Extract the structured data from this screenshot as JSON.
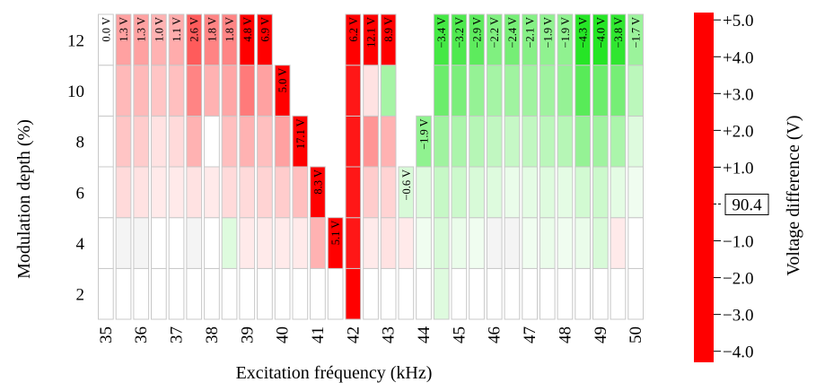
{
  "chart_data": {
    "type": "heatmap",
    "xlabel": "Excitation fréquency (kHz)",
    "ylabel": "Modulation depth (%)",
    "x_ticks": [
      "35",
      "36",
      "37",
      "38",
      "39",
      "40",
      "41",
      "42",
      "43",
      "44",
      "45",
      "46",
      "47",
      "48",
      "49",
      "50"
    ],
    "y_ticks": [
      "2",
      "4",
      "6",
      "8",
      "10",
      "12"
    ],
    "x_range": [
      35,
      50
    ],
    "y_range": [
      1,
      13
    ],
    "x_step": 0.5,
    "y_bands": [
      [
        1,
        3
      ],
      [
        3,
        5
      ],
      [
        5,
        7
      ],
      [
        7,
        9
      ],
      [
        9,
        11
      ],
      [
        11,
        13
      ]
    ],
    "threshold_labels": [
      {
        "x": 35.0,
        "label": "0.0 V"
      },
      {
        "x": 35.5,
        "label": "1.3 V"
      },
      {
        "x": 36.0,
        "label": "1.3 V"
      },
      {
        "x": 36.5,
        "label": "1.0 V"
      },
      {
        "x": 37.0,
        "label": "1.1 V"
      },
      {
        "x": 37.5,
        "label": "2.6 V"
      },
      {
        "x": 38.0,
        "label": "1.8 V"
      },
      {
        "x": 38.5,
        "label": "1.8 V"
      },
      {
        "x": 39.0,
        "label": "4.8 V"
      },
      {
        "x": 39.5,
        "label": "6.9 V"
      },
      {
        "x": 40.0,
        "label": "5.0 V"
      },
      {
        "x": 40.5,
        "label": "17.1 V"
      },
      {
        "x": 41.0,
        "label": "8.3 V"
      },
      {
        "x": 41.5,
        "label": "5.1 V"
      },
      {
        "x": 42.0,
        "label": "6.2 V"
      },
      {
        "x": 42.5,
        "label": "12.1 V"
      },
      {
        "x": 43.0,
        "label": "8.9 V"
      },
      {
        "x": 43.5,
        "label": "−0.6 V"
      },
      {
        "x": 44.0,
        "label": "−1.9 V"
      },
      {
        "x": 44.5,
        "label": "−3.4 V"
      },
      {
        "x": 45.0,
        "label": "−3.2 V"
      },
      {
        "x": 45.5,
        "label": "−2.9 V"
      },
      {
        "x": 46.0,
        "label": "−2.2 V"
      },
      {
        "x": 46.5,
        "label": "−2.4 V"
      },
      {
        "x": 47.0,
        "label": "−2.1 V"
      },
      {
        "x": 47.5,
        "label": "−1.9 V"
      },
      {
        "x": 48.0,
        "label": "−1.9 V"
      },
      {
        "x": 48.5,
        "label": "−4.3 V"
      },
      {
        "x": 49.0,
        "label": "−4.0 V"
      },
      {
        "x": 49.5,
        "label": "−3.8 V"
      },
      {
        "x": 50.0,
        "label": "−1.7 V"
      }
    ],
    "threshold_top": [
      13,
      13,
      13,
      13,
      13,
      13,
      13,
      13,
      13,
      13,
      11,
      9,
      7,
      5,
      13,
      13,
      13,
      7,
      9,
      13,
      13,
      13,
      13,
      13,
      13,
      13,
      13,
      13,
      13,
      13,
      13
    ],
    "cell_values": [
      [
        0.0,
        0.0,
        0.0,
        0.0,
        0.0,
        0.0
      ],
      [
        0.0,
        0.1,
        0.4,
        0.7,
        0.9,
        1.3
      ],
      [
        0.0,
        0.1,
        0.3,
        0.6,
        0.9,
        1.3
      ],
      [
        0.0,
        0.0,
        0.2,
        0.3,
        0.7,
        1.0
      ],
      [
        0.0,
        0.0,
        0.2,
        0.4,
        0.8,
        1.1
      ],
      [
        0.0,
        0.1,
        0.3,
        1.0,
        1.8,
        2.6
      ],
      [
        0.0,
        0.0,
        0.2,
        0.0,
        1.0,
        1.8
      ],
      [
        0.0,
        -0.5,
        0.4,
        0.8,
        1.2,
        1.8
      ],
      [
        0.0,
        0.2,
        0.4,
        1.0,
        2.0,
        4.8
      ],
      [
        0.0,
        0.2,
        0.5,
        0.8,
        1.3,
        6.9
      ],
      [
        0.0,
        0.2,
        0.6,
        1.3,
        5.0,
        0
      ],
      [
        0.0,
        0.2,
        0.8,
        17.1,
        0,
        0
      ],
      [
        0.0,
        1.0,
        8.3,
        0,
        0,
        0
      ],
      [
        0.0,
        5.1,
        0,
        0,
        0,
        0
      ],
      [
        6.2,
        4.0,
        4.0,
        4.0,
        4.0,
        6.2
      ],
      [
        0.0,
        0.2,
        0.6,
        1.5,
        0.3,
        12.1
      ],
      [
        0.0,
        0.3,
        0.5,
        1.0,
        -1.5,
        8.9
      ],
      [
        0.0,
        0.2,
        -0.6,
        0,
        0,
        0
      ],
      [
        0.0,
        -0.2,
        -0.5,
        -1.9,
        0,
        0
      ],
      [
        -0.5,
        -0.6,
        -0.9,
        -1.6,
        -2.6,
        -3.4
      ],
      [
        0.0,
        -0.3,
        -0.8,
        -1.4,
        -2.3,
        -3.2
      ],
      [
        0.0,
        -0.2,
        -0.6,
        -1.2,
        -1.8,
        -2.9
      ],
      [
        0.0,
        -0.1,
        -0.5,
        -1.0,
        -1.5,
        -2.2
      ],
      [
        0.0,
        -0.1,
        -0.3,
        -0.9,
        -1.6,
        -2.4
      ],
      [
        0.0,
        -0.2,
        -0.4,
        -1.0,
        -1.6,
        -2.1
      ],
      [
        0.0,
        -0.3,
        -0.5,
        -1.1,
        -1.6,
        -1.9
      ],
      [
        0.0,
        -0.2,
        -0.4,
        -1.2,
        -1.8,
        -1.9
      ],
      [
        0.0,
        -0.3,
        -0.7,
        -1.8,
        -3.0,
        -4.3
      ],
      [
        0.0,
        -0.6,
        -0.8,
        -1.6,
        -2.6,
        -4.0
      ],
      [
        0.0,
        0.2,
        -0.4,
        -1.4,
        -2.4,
        -3.8
      ],
      [
        0.0,
        0.0,
        -0.2,
        -0.5,
        -1.1,
        -1.7
      ]
    ],
    "colorbar": {
      "label": "Voltage difference (V)",
      "ticks": [
        "+5.0",
        "+4.0",
        "+3.0",
        "+2.0",
        "+1.0",
        "−1.0",
        "−2.0",
        "−3.0",
        "−4.0"
      ],
      "tick_values": [
        5,
        4,
        3,
        2,
        1,
        -1,
        -2,
        -3,
        -4
      ],
      "marker_label": "90.4",
      "marker_value": 0,
      "range": [
        -4.3,
        5.2
      ]
    },
    "colors": {
      "positive": "#ff0000",
      "negative": "#00e000",
      "neutral": "#e6e6e6",
      "cell_border": "#c8c8c8"
    }
  }
}
